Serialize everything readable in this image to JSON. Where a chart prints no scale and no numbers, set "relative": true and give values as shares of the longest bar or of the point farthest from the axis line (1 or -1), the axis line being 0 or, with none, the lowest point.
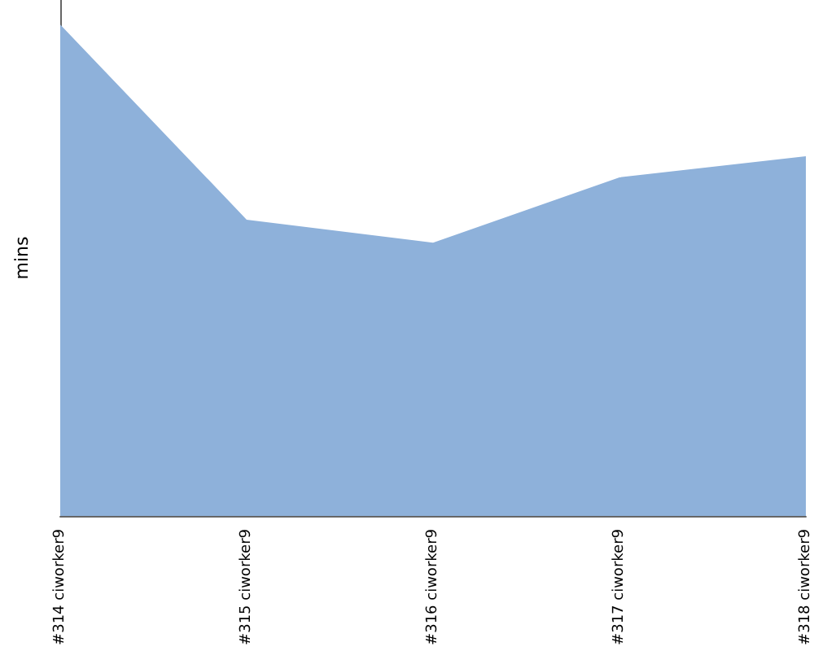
{
  "chart_data": {
    "type": "area",
    "ylabel": "mins",
    "relative": true,
    "categories": [
      "#314 ciworker9",
      "#315 ciworker9",
      "#316 ciworker9",
      "#317 ciworker9",
      "#318 ciworker9"
    ],
    "series": [
      {
        "color": "#8eb1da",
        "values": [
          1,
          0.603,
          0.556,
          0.689,
          0.732
        ]
      }
    ]
  }
}
